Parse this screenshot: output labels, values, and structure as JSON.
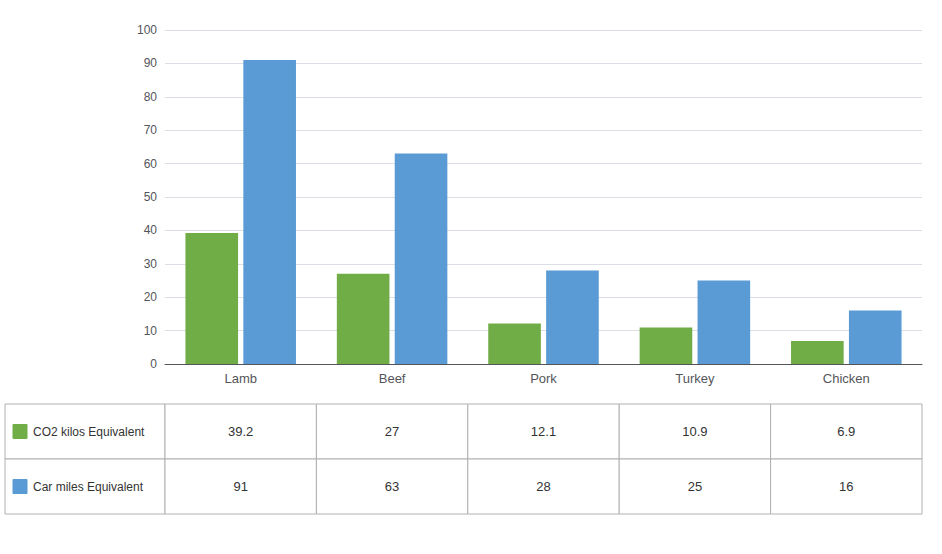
{
  "chart_data": {
    "type": "bar",
    "categories": [
      "Lamb",
      "Beef",
      "Pork",
      "Turkey",
      "Chicken"
    ],
    "series": [
      {
        "name": "CO2 kilos Equivalent",
        "color": "#70ad47",
        "values": [
          39.2,
          27,
          12.1,
          10.9,
          6.9
        ]
      },
      {
        "name": "Car miles Equivalent",
        "color": "#5b9bd5",
        "values": [
          91,
          63,
          28,
          25,
          16
        ]
      }
    ],
    "ylim": [
      0,
      100
    ],
    "yticks": [
      0,
      10,
      20,
      30,
      40,
      50,
      60,
      70,
      80,
      90,
      100
    ],
    "grid": true,
    "legend": "bottom"
  }
}
